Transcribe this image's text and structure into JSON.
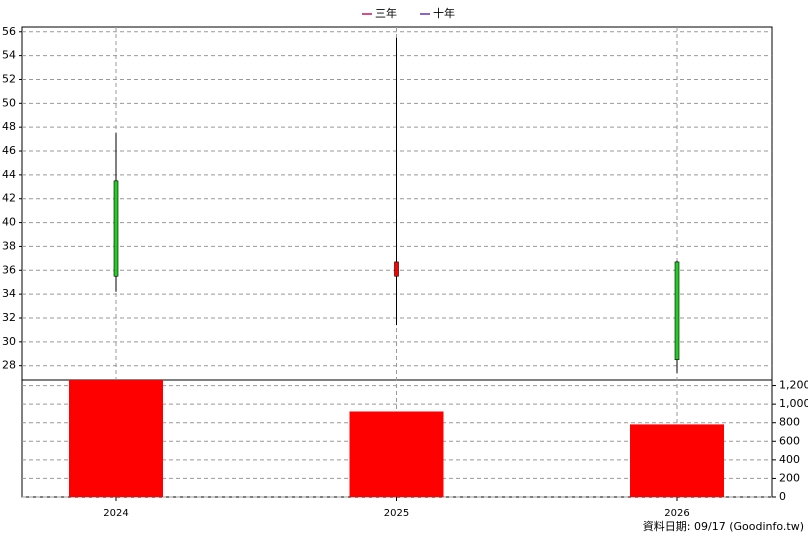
{
  "chart_data": {
    "type": "candlestick",
    "legend": [
      {
        "name": "三年",
        "color": "#d01060"
      },
      {
        "name": "十年",
        "color": "#6a2cc0"
      }
    ],
    "categories": [
      "2024",
      "2025",
      "2026"
    ],
    "open": [
      43.5,
      35.5,
      36.7
    ],
    "high": [
      47.5,
      55.5,
      36.8
    ],
    "low": [
      34.2,
      31.4,
      27.4
    ],
    "close": [
      35.5,
      36.7,
      28.5
    ],
    "up_color": "#ff0000",
    "down_color": "#22cc22",
    "ylim": [
      26.8,
      56.4
    ],
    "yticks": [
      28,
      30,
      32,
      34,
      36,
      38,
      40,
      42,
      44,
      46,
      48,
      50,
      52,
      54,
      56
    ],
    "volume": {
      "values": [
        1260,
        921,
        782
      ],
      "color": "#ff0000"
    },
    "y2lim": [
      0,
      1260
    ],
    "y2ticks": [
      0,
      200,
      400,
      600,
      800,
      {
        "value": 1000,
        "label": "1,000"
      },
      {
        "value": 1200,
        "label": "1,200"
      }
    ],
    "grid": true,
    "footer": "資料日期: 09/17  (Goodinfo.tw)"
  }
}
